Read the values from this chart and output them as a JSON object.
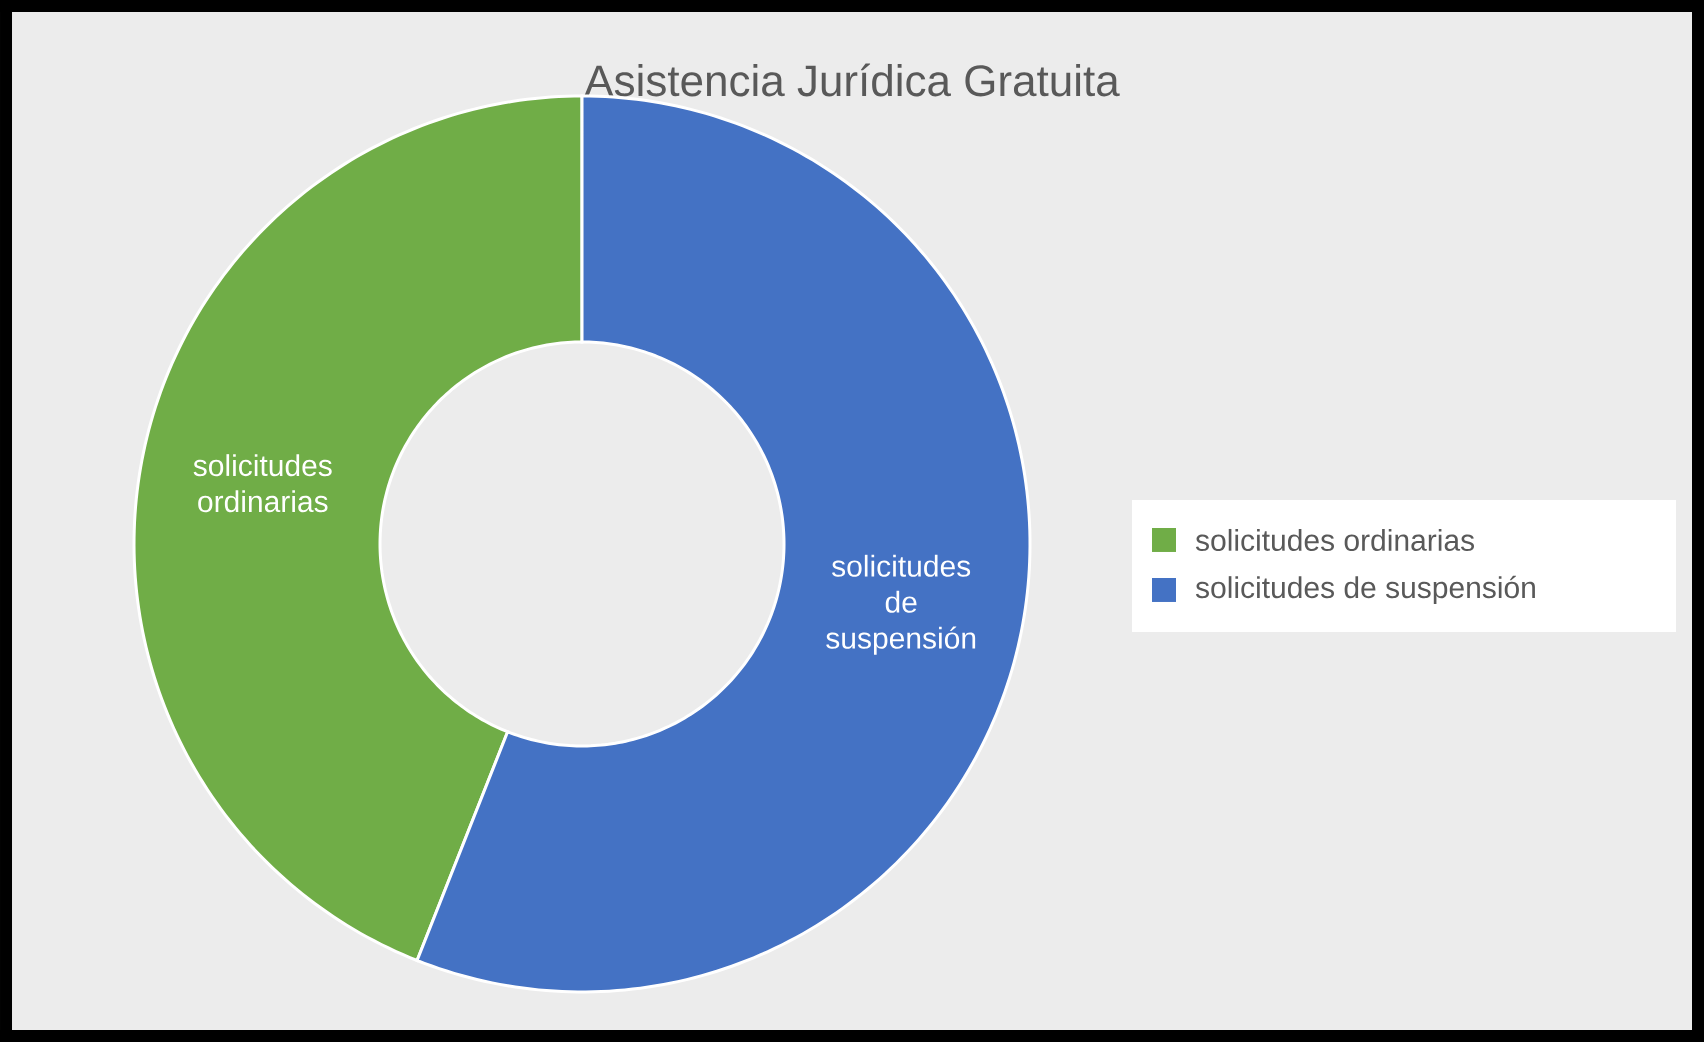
{
  "chart_data": {
    "type": "donut",
    "title": "Asistencia Jurídica Gratuita",
    "categories": [
      "solicitudes ordinarias",
      "solicitudes de suspensión"
    ],
    "values": [
      44,
      56
    ],
    "colors": [
      "#70ad47",
      "#4472c4"
    ],
    "legend": "right"
  }
}
